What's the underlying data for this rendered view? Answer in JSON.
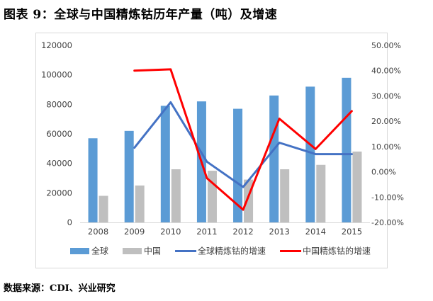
{
  "figure": {
    "title": "图表 9：全球与中国精炼钴历年产量（吨）及增速",
    "source": "数据来源：CDI、兴业研究"
  },
  "chart_data": {
    "type": "bar",
    "categories": [
      "2008",
      "2009",
      "2010",
      "2011",
      "2012",
      "2013",
      "2014",
      "2015"
    ],
    "series": [
      {
        "name": "全球",
        "type": "bar",
        "axis": "left",
        "color": "#5b9bd5",
        "values": [
          57000,
          62000,
          79000,
          82000,
          77000,
          86000,
          92000,
          98000
        ]
      },
      {
        "name": "中国",
        "type": "bar",
        "axis": "left",
        "color": "#bfbfbf",
        "values": [
          18000,
          25000,
          36000,
          35000,
          29000,
          36000,
          39000,
          48000
        ]
      },
      {
        "name": "全球精炼钴的增速",
        "type": "line",
        "axis": "right",
        "color": "#4472c4",
        "values": [
          null,
          9.5,
          27.5,
          4.0,
          -6.0,
          11.5,
          7.0,
          7.0
        ]
      },
      {
        "name": "中国精炼钴的增速",
        "type": "line",
        "axis": "right",
        "color": "#ff0000",
        "values": [
          null,
          40.0,
          40.5,
          -2.5,
          -15.0,
          21.0,
          9.0,
          24.0
        ]
      }
    ],
    "y_left": {
      "min": 0,
      "max": 120000,
      "step": 20000,
      "ticks": [
        "0",
        "20000",
        "40000",
        "60000",
        "80000",
        "100000",
        "120000"
      ]
    },
    "y_right": {
      "min": -20,
      "max": 50,
      "step": 10,
      "ticks": [
        "-20.00%",
        "-10.00%",
        "0.00%",
        "10.00%",
        "20.00%",
        "30.00%",
        "40.00%",
        "50.00%"
      ]
    },
    "grid": false,
    "legend_position": "bottom"
  }
}
